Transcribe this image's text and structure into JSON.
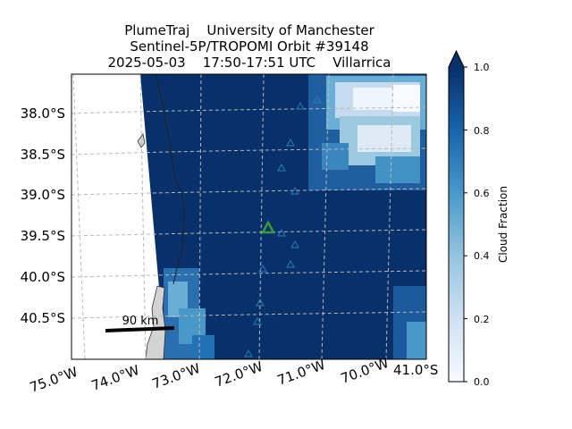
{
  "title": {
    "line1": "PlumeTraj    University of Manchester",
    "line2": "Sentinel-5P/TROPOMI Orbit #39148",
    "line3": "2025-05-03    17:50-17:51 UTC    Villarrica"
  },
  "map": {
    "lat_labels": [
      "38.0°S",
      "38.5°S",
      "39.0°S",
      "39.5°S",
      "40.0°S",
      "40.5°S"
    ],
    "lon_labels": [
      "75.0°W",
      "74.0°W",
      "73.0°W",
      "72.0°W",
      "71.0°W",
      "70.0°W"
    ],
    "corner_label": "41.0°S",
    "scale_bar_label": "90 km",
    "volcano_marker_color": "#3a9a3a",
    "marker_color": "#2b7bba",
    "land_color": "#d3d3d3",
    "gridline_style": "dashed grey"
  },
  "colorbar": {
    "label": "Cloud Fraction",
    "ticks": [
      "0.0",
      "0.2",
      "0.4",
      "0.6",
      "0.8",
      "1.0"
    ],
    "colormap": "Blues",
    "range": [
      0.0,
      1.0
    ],
    "extend": "max"
  }
}
